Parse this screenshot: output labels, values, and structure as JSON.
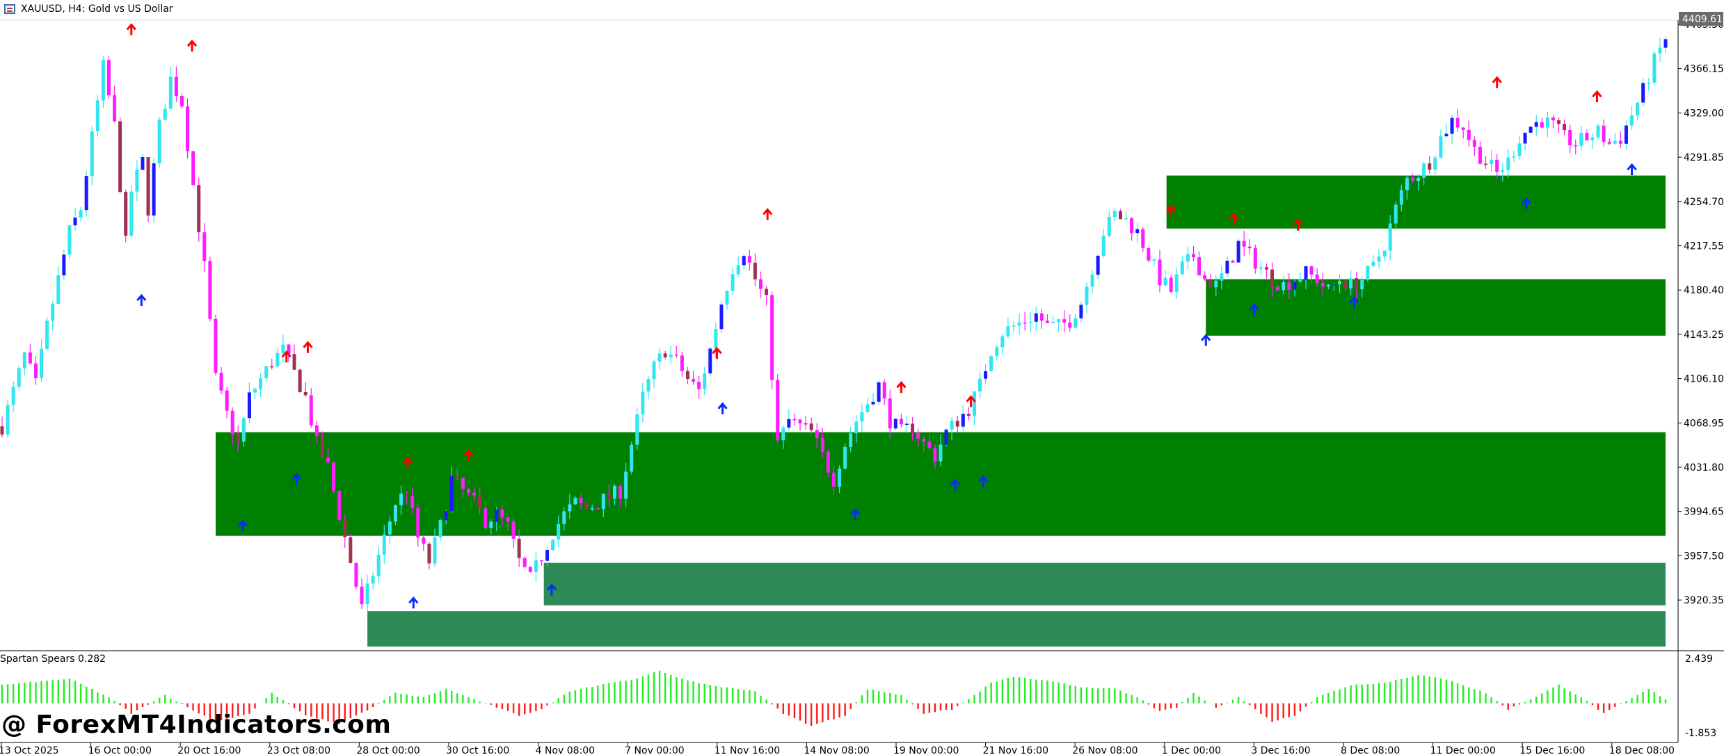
{
  "window": {
    "title": "XAUUSD, H4:  Gold vs US Dollar"
  },
  "indicator": {
    "name": "Spartan Spears 0.282"
  },
  "watermark": "@ ForexMT4Indicators.com",
  "colors": {
    "background": "#ffffff",
    "bull_candle": "#32e6f0",
    "bull_body_dark": "#1a1aff",
    "bear_candle": "#ff1cff",
    "bear_body_dark": "#a0324f",
    "zone_dark": "#008000",
    "zone_light": "#2e8b57",
    "arrow_up": "#0a2bff",
    "arrow_down": "#ff0000",
    "hist_pos": "#22ee22",
    "hist_neg": "#ff1a1a",
    "last_price_bg": "#6b6b6b"
  },
  "chart_data": [
    {
      "type": "candlestick",
      "symbol": "XAUUSD",
      "timeframe": "H4",
      "ylim": [
        3885,
        4420
      ],
      "y_ticks": [
        "4403.30",
        "4366.15",
        "4329.00",
        "4291.85",
        "4254.70",
        "4217.55",
        "4180.40",
        "4143.25",
        "4106.10",
        "4068.95",
        "4031.80",
        "3994.65",
        "3957.50",
        "3920.35"
      ],
      "last_price": "4409.61",
      "x_ticks": [
        "13 Oct 2025",
        "16 Oct 00:00",
        "20 Oct 16:00",
        "23 Oct 08:00",
        "28 Oct 00:00",
        "30 Oct 16:00",
        "4 Nov 08:00",
        "7 Nov 00:00",
        "11 Nov 16:00",
        "14 Nov 08:00",
        "19 Nov 00:00",
        "21 Nov 16:00",
        "26 Nov 08:00",
        "1 Dec 00:00",
        "3 Dec 16:00",
        "8 Dec 08:00",
        "11 Dec 00:00",
        "15 Dec 16:00",
        "18 Dec 08:00"
      ],
      "close_path": [
        [
          0,
          4075
        ],
        [
          10,
          4105
        ],
        [
          20,
          4135
        ],
        [
          30,
          4110
        ],
        [
          40,
          4160
        ],
        [
          50,
          4200
        ],
        [
          60,
          4240
        ],
        [
          70,
          4260
        ],
        [
          80,
          4320
        ],
        [
          90,
          4380
        ],
        [
          100,
          4330
        ],
        [
          110,
          4230
        ],
        [
          115,
          4275
        ],
        [
          125,
          4300
        ],
        [
          130,
          4260
        ],
        [
          140,
          4330
        ],
        [
          150,
          4370
        ],
        [
          160,
          4350
        ],
        [
          170,
          4280
        ],
        [
          180,
          4210
        ],
        [
          190,
          4115
        ],
        [
          200,
          4085
        ],
        [
          210,
          4060
        ],
        [
          220,
          4100
        ],
        [
          230,
          4115
        ],
        [
          240,
          4130
        ],
        [
          250,
          4140
        ],
        [
          260,
          4120
        ],
        [
          270,
          4100
        ],
        [
          280,
          4060
        ],
        [
          290,
          4040
        ],
        [
          300,
          4000
        ],
        [
          310,
          3960
        ],
        [
          320,
          3920
        ],
        [
          330,
          3950
        ],
        [
          340,
          3980
        ],
        [
          350,
          4010
        ],
        [
          360,
          4020
        ],
        [
          370,
          3980
        ],
        [
          380,
          3960
        ],
        [
          390,
          3990
        ],
        [
          400,
          4030
        ],
        [
          410,
          4020
        ],
        [
          420,
          4010
        ],
        [
          430,
          3995
        ],
        [
          440,
          4000
        ],
        [
          450,
          3990
        ],
        [
          460,
          3960
        ],
        [
          470,
          3945
        ],
        [
          480,
          3965
        ],
        [
          490,
          3985
        ],
        [
          500,
          4000
        ],
        [
          510,
          4010
        ],
        [
          520,
          4005
        ],
        [
          530,
          4010
        ],
        [
          540,
          4015
        ],
        [
          550,
          4020
        ],
        [
          560,
          4060
        ],
        [
          570,
          4100
        ],
        [
          580,
          4125
        ],
        [
          590,
          4140
        ],
        [
          600,
          4130
        ],
        [
          610,
          4115
        ],
        [
          620,
          4105
        ],
        [
          630,
          4140
        ],
        [
          640,
          4180
        ],
        [
          650,
          4210
        ],
        [
          660,
          4225
        ],
        [
          670,
          4200
        ],
        [
          680,
          4180
        ],
        [
          690,
          4060
        ],
        [
          700,
          4080
        ],
        [
          710,
          4075
        ],
        [
          720,
          4070
        ],
        [
          730,
          4050
        ],
        [
          740,
          4030
        ],
        [
          750,
          4060
        ],
        [
          760,
          4080
        ],
        [
          770,
          4095
        ],
        [
          780,
          4110
        ],
        [
          790,
          4080
        ],
        [
          800,
          4070
        ],
        [
          810,
          4075
        ],
        [
          820,
          4060
        ],
        [
          830,
          4050
        ],
        [
          840,
          4070
        ],
        [
          850,
          4080
        ],
        [
          860,
          4090
        ],
        [
          870,
          4110
        ],
        [
          880,
          4140
        ],
        [
          890,
          4155
        ],
        [
          900,
          4160
        ],
        [
          910,
          4165
        ],
        [
          920,
          4170
        ],
        [
          930,
          4160
        ],
        [
          940,
          4160
        ],
        [
          950,
          4165
        ],
        [
          960,
          4180
        ],
        [
          970,
          4210
        ],
        [
          980,
          4240
        ],
        [
          990,
          4255
        ],
        [
          1000,
          4250
        ],
        [
          1010,
          4240
        ],
        [
          1020,
          4220
        ],
        [
          1030,
          4200
        ],
        [
          1040,
          4190
        ],
        [
          1050,
          4210
        ],
        [
          1060,
          4220
        ],
        [
          1070,
          4200
        ],
        [
          1080,
          4195
        ],
        [
          1090,
          4210
        ],
        [
          1100,
          4230
        ],
        [
          1110,
          4220
        ],
        [
          1120,
          4210
        ],
        [
          1130,
          4200
        ],
        [
          1140,
          4195
        ],
        [
          1150,
          4200
        ],
        [
          1160,
          4205
        ],
        [
          1170,
          4200
        ],
        [
          1180,
          4190
        ],
        [
          1190,
          4200
        ],
        [
          1200,
          4195
        ],
        [
          1210,
          4200
        ],
        [
          1220,
          4210
        ],
        [
          1230,
          4230
        ],
        [
          1240,
          4260
        ],
        [
          1250,
          4285
        ],
        [
          1260,
          4290
        ],
        [
          1270,
          4300
        ],
        [
          1280,
          4320
        ],
        [
          1290,
          4335
        ],
        [
          1300,
          4330
        ],
        [
          1310,
          4310
        ],
        [
          1320,
          4300
        ],
        [
          1330,
          4290
        ],
        [
          1340,
          4300
        ],
        [
          1350,
          4320
        ],
        [
          1360,
          4330
        ],
        [
          1370,
          4335
        ],
        [
          1380,
          4330
        ],
        [
          1390,
          4320
        ],
        [
          1400,
          4315
        ],
        [
          1410,
          4320
        ],
        [
          1420,
          4325
        ],
        [
          1430,
          4315
        ],
        [
          1440,
          4320
        ],
        [
          1450,
          4340
        ],
        [
          1460,
          4360
        ],
        [
          1470,
          4385
        ],
        [
          1480,
          4405
        ]
      ],
      "zones": [
        {
          "style": "dark",
          "from": 190,
          "to": 1480,
          "top": 4070,
          "bottom": 3982
        },
        {
          "style": "light",
          "from": 482,
          "to": 1480,
          "top": 3959,
          "bottom": 3923
        },
        {
          "style": "light",
          "from": 325,
          "to": 1480,
          "top": 3918,
          "bottom": 3888
        },
        {
          "style": "dark",
          "from": 1036,
          "to": 1480,
          "top": 4288,
          "bottom": 4243
        },
        {
          "style": "dark",
          "from": 1071,
          "to": 1480,
          "top": 4200,
          "bottom": 4152
        }
      ],
      "up_arrows": [
        [
          124,
          4182
        ],
        [
          214,
          3990
        ],
        [
          262,
          4030
        ],
        [
          366,
          3925
        ],
        [
          489,
          3936
        ],
        [
          641,
          4090
        ],
        [
          759,
          4000
        ],
        [
          848,
          4025
        ],
        [
          873,
          4028
        ],
        [
          1071,
          4148
        ],
        [
          1114,
          4174
        ],
        [
          1203,
          4180
        ],
        [
          1356,
          4264
        ],
        [
          1450,
          4293
        ]
      ],
      "down_arrows": [
        [
          115,
          4412
        ],
        [
          169,
          4398
        ],
        [
          253,
          4134
        ],
        [
          272,
          4142
        ],
        [
          361,
          4044
        ],
        [
          415,
          4050
        ],
        [
          636,
          4137
        ],
        [
          681,
          4255
        ],
        [
          800,
          4108
        ],
        [
          862,
          4096
        ],
        [
          1040,
          4258
        ],
        [
          1096,
          4251
        ],
        [
          1153,
          4246
        ],
        [
          1330,
          4367
        ],
        [
          1419,
          4355
        ]
      ]
    },
    {
      "type": "bar",
      "name": "Spartan Spears 0.282",
      "ylim": [
        -1.853,
        2.439
      ],
      "y_ticks": [
        "2.439",
        "-1.853"
      ],
      "wave": [
        [
          0,
          0.9
        ],
        [
          60,
          1.2
        ],
        [
          95,
          0.3
        ],
        [
          115,
          -0.5
        ],
        [
          145,
          0.4
        ],
        [
          165,
          -0.2
        ],
        [
          190,
          -0.9
        ],
        [
          220,
          -0.5
        ],
        [
          240,
          0.5
        ],
        [
          270,
          -0.6
        ],
        [
          300,
          -1.0
        ],
        [
          330,
          -0.2
        ],
        [
          350,
          0.5
        ],
        [
          375,
          0.3
        ],
        [
          395,
          0.7
        ],
        [
          425,
          0.1
        ],
        [
          460,
          -0.6
        ],
        [
          480,
          -0.3
        ],
        [
          505,
          0.6
        ],
        [
          540,
          1.0
        ],
        [
          565,
          1.2
        ],
        [
          585,
          1.6
        ],
        [
          610,
          1.1
        ],
        [
          640,
          0.8
        ],
        [
          670,
          0.6
        ],
        [
          695,
          -0.5
        ],
        [
          720,
          -1.1
        ],
        [
          750,
          -0.6
        ],
        [
          770,
          0.7
        ],
        [
          800,
          0.4
        ],
        [
          820,
          -0.5
        ],
        [
          845,
          -0.3
        ],
        [
          860,
          0.2
        ],
        [
          880,
          1.0
        ],
        [
          900,
          1.3
        ],
        [
          930,
          1.1
        ],
        [
          960,
          0.8
        ],
        [
          990,
          0.7
        ],
        [
          1010,
          0.3
        ],
        [
          1030,
          -0.4
        ],
        [
          1045,
          -0.2
        ],
        [
          1060,
          0.5
        ],
        [
          1080,
          -0.2
        ],
        [
          1100,
          0.3
        ],
        [
          1130,
          -0.9
        ],
        [
          1150,
          -0.6
        ],
        [
          1170,
          0.3
        ],
        [
          1200,
          0.9
        ],
        [
          1230,
          1.0
        ],
        [
          1260,
          1.4
        ],
        [
          1290,
          1.1
        ],
        [
          1320,
          0.5
        ],
        [
          1340,
          -0.3
        ],
        [
          1360,
          0.2
        ],
        [
          1385,
          0.9
        ],
        [
          1405,
          0.3
        ],
        [
          1425,
          -0.5
        ],
        [
          1445,
          0.1
        ],
        [
          1465,
          0.7
        ],
        [
          1480,
          0.2
        ]
      ]
    }
  ]
}
